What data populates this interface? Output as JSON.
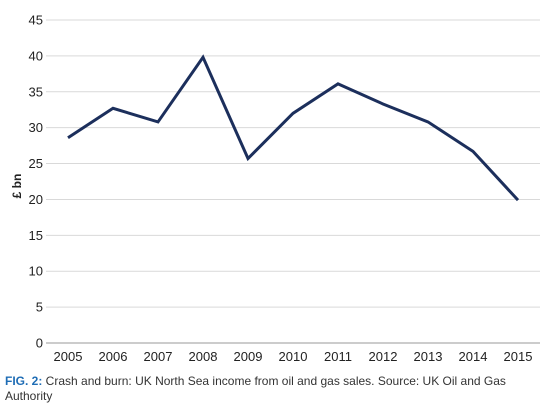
{
  "chart_data": {
    "type": "line",
    "title": "",
    "xlabel": "",
    "ylabel": "£ bn",
    "x": [
      "2005",
      "2006",
      "2007",
      "2008",
      "2009",
      "2010",
      "2011",
      "2012",
      "2013",
      "2014",
      "2015"
    ],
    "series": [
      {
        "values": [
          28.6,
          32.7,
          30.8,
          39.8,
          25.7,
          32.0,
          36.1,
          33.3,
          30.8,
          26.7,
          19.9
        ]
      }
    ],
    "ylim": [
      0,
      45
    ],
    "yticks": [
      0,
      5,
      10,
      15,
      20,
      25,
      30,
      35,
      40,
      45
    ],
    "grid": true,
    "legend": "none"
  },
  "colors": {
    "line": "#1c2f5c",
    "grid": "#d9d9d9",
    "axis": "#999999",
    "caption_label": "#1f6db5"
  },
  "caption": {
    "label": "FIG. 2:",
    "text": " Crash and burn: UK North Sea income from oil and gas sales. Source: UK Oil and Gas Authority"
  }
}
